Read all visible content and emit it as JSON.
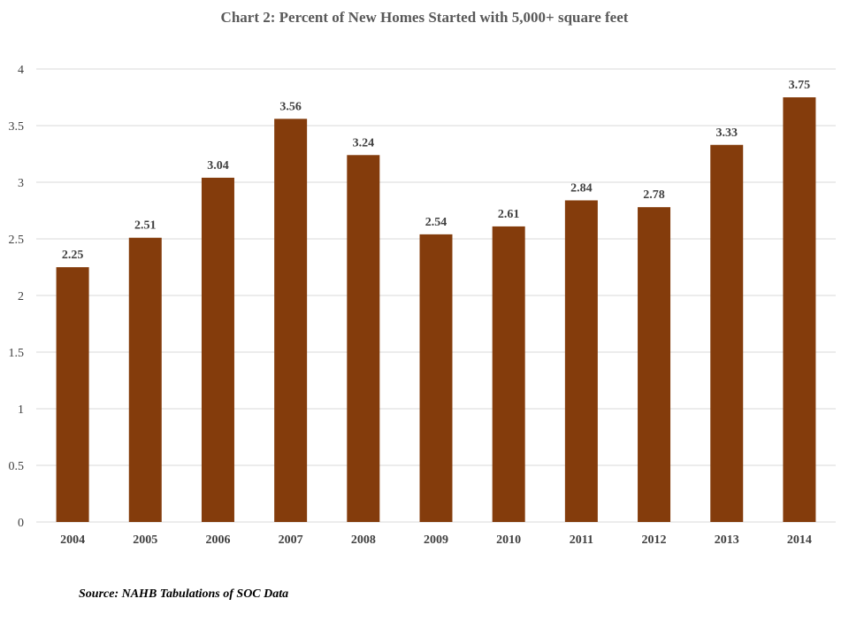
{
  "chart_data": {
    "type": "bar",
    "title": "Chart 2: Percent of New Homes Started with 5,000+ square feet",
    "categories": [
      "2004",
      "2005",
      "2006",
      "2007",
      "2008",
      "2009",
      "2010",
      "2011",
      "2012",
      "2013",
      "2014"
    ],
    "values": [
      2.25,
      2.51,
      3.04,
      3.56,
      3.24,
      2.54,
      2.61,
      2.84,
      2.78,
      3.33,
      3.75
    ],
    "data_labels": [
      "2.25",
      "2.51",
      "3.04",
      "3.56",
      "3.24",
      "2.54",
      "2.61",
      "2.84",
      "2.78",
      "3.33",
      "3.75"
    ],
    "ylim": [
      0,
      4
    ],
    "yticks": [
      "0",
      "0.5",
      "1",
      "1.5",
      "2",
      "2.5",
      "3",
      "3.5",
      "4"
    ],
    "xlabel": "",
    "ylabel": "",
    "grid": true,
    "legend": "none",
    "bar_color": "#843C0C",
    "grid_color": "#D9D9D9"
  },
  "source_note": "Source: NAHB Tabulations of SOC Data"
}
